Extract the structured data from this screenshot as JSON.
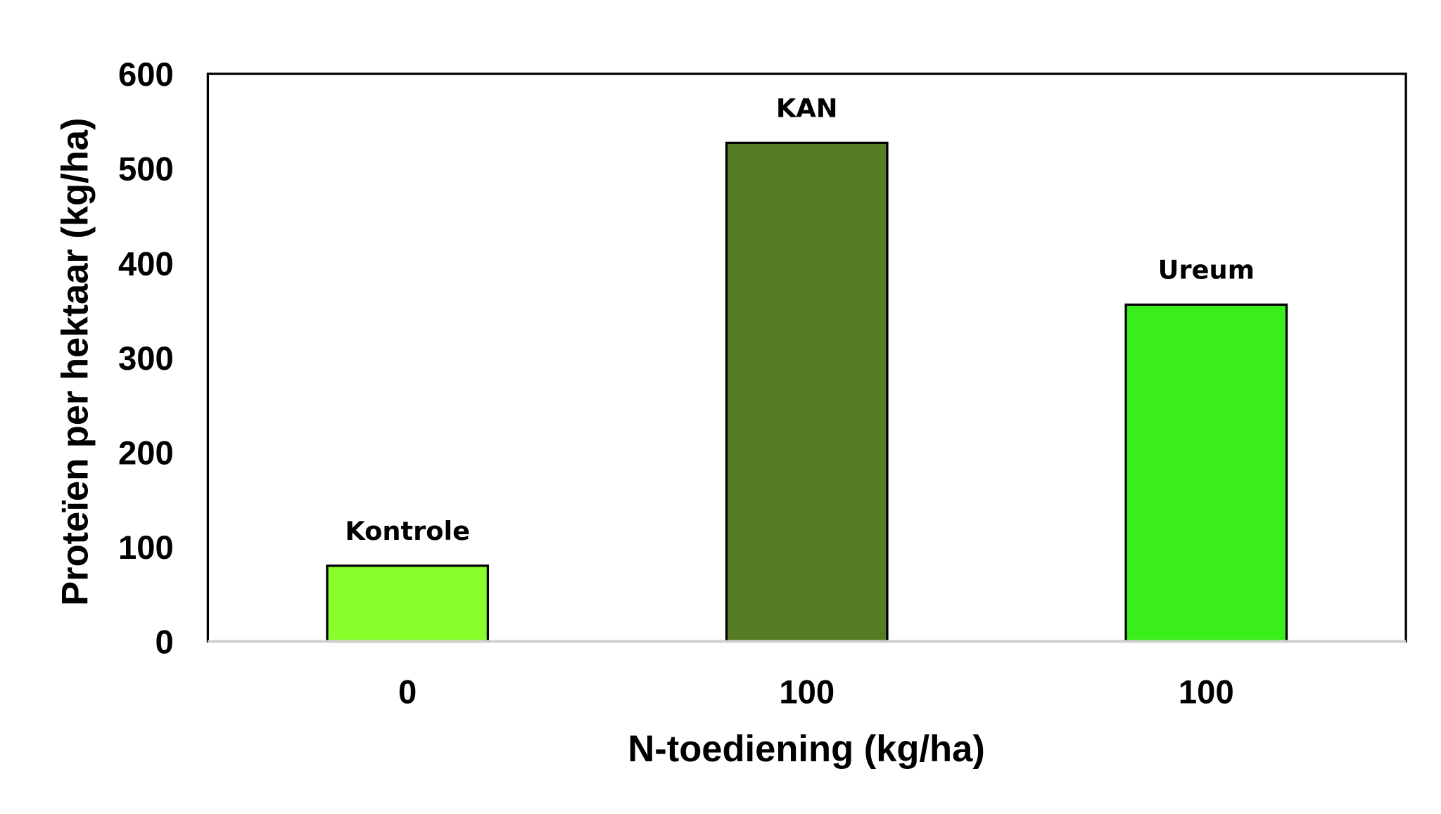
{
  "chart_data": {
    "type": "bar",
    "categories": [
      "0",
      "100",
      "100"
    ],
    "bar_labels": [
      "Kontrole",
      "KAN",
      "Ureum"
    ],
    "values": [
      80,
      527,
      356
    ],
    "colors": [
      "#88FF2A",
      "#567D23",
      "#3AEE1C"
    ],
    "title": "",
    "xlabel": "N-toediening (kg/ha)",
    "ylabel": "Proteïen per hektaar (kg/ha)",
    "ylim": [
      0,
      600
    ],
    "yticks": [
      0,
      100,
      200,
      300,
      400,
      500,
      600
    ],
    "grid": false,
    "legend": "none"
  }
}
